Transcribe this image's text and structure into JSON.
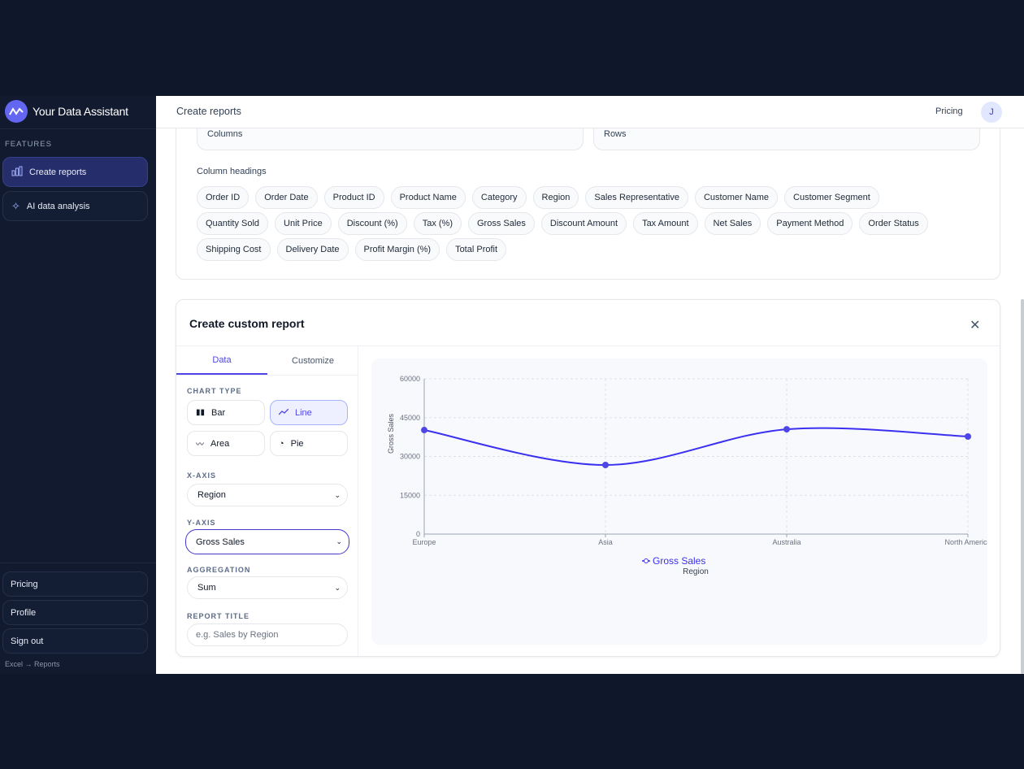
{
  "app": {
    "name": "Your Data Assistant"
  },
  "sidebar": {
    "section": "FEATURES",
    "items": [
      {
        "label": "Create reports",
        "icon": "bar-chart-icon"
      },
      {
        "label": "AI data analysis",
        "icon": "sparkles-icon"
      }
    ],
    "bottom": [
      {
        "label": "Pricing"
      },
      {
        "label": "Profile"
      },
      {
        "label": "Sign out"
      }
    ],
    "footer": "Excel → Reports"
  },
  "header": {
    "title": "Create reports",
    "pricing": "Pricing",
    "avatar": "J"
  },
  "source": {
    "columns_label": "Columns",
    "rows_label": "Rows",
    "headings_label": "Column headings",
    "headings": [
      "Order ID",
      "Order Date",
      "Product ID",
      "Product Name",
      "Category",
      "Region",
      "Sales Representative",
      "Customer Name",
      "Customer Segment",
      "Quantity Sold",
      "Unit Price",
      "Discount (%)",
      "Tax (%)",
      "Gross Sales",
      "Discount Amount",
      "Tax Amount",
      "Net Sales",
      "Payment Method",
      "Order Status",
      "Shipping Cost",
      "Delivery Date",
      "Profit Margin (%)",
      "Total Profit"
    ]
  },
  "report": {
    "title": "Create custom report",
    "tabs": [
      "Data",
      "Customize"
    ],
    "active_tab": "Data",
    "chart_type_label": "CHART TYPE",
    "chart_types": [
      "Bar",
      "Line",
      "Area",
      "Pie"
    ],
    "selected_chart_type": "Line",
    "x_axis_label": "X-AXIS",
    "x_axis": "Region",
    "y_axis_label": "Y-AXIS",
    "y_axis": "Gross Sales",
    "aggregation_label": "AGGREGATION",
    "aggregation": "Sum",
    "report_title_label": "REPORT TITLE",
    "report_title_placeholder": "e.g. Sales by Region"
  },
  "colors": {
    "accent": "#4338ca",
    "line": "#3b2ff0",
    "sidebar": "#111a2e"
  },
  "chart_data": {
    "type": "line",
    "categories": [
      "Europe",
      "Asia",
      "Australia",
      "North America"
    ],
    "series": [
      {
        "name": "Gross Sales",
        "values": [
          40200,
          26700,
          40500,
          37700
        ]
      }
    ],
    "xlabel": "Region",
    "ylabel": "Gross Sales",
    "ylim": [
      0,
      60000
    ],
    "yticks": [
      "0",
      "15000",
      "30000",
      "45000",
      "60000"
    ],
    "grid": true,
    "legend": "bottom",
    "smooth": true
  }
}
